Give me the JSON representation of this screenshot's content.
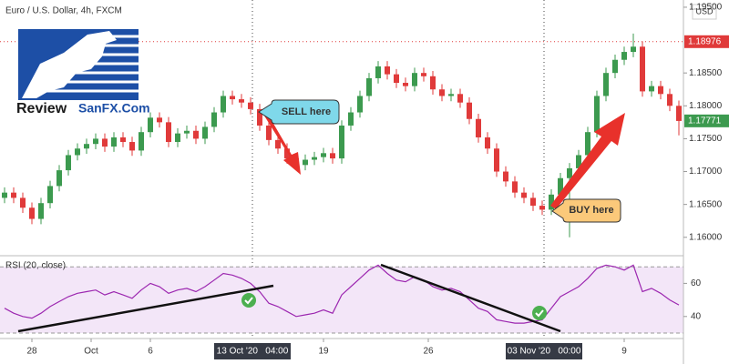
{
  "chart_data": [
    {
      "type": "candlestick",
      "title": "Euro / U.S. Dollar, 4h, FXCM",
      "currency": "USD",
      "x": [
        0,
        1,
        2,
        3,
        4,
        5,
        6,
        7,
        8,
        9,
        10,
        11,
        12,
        13,
        14,
        15,
        16,
        17,
        18,
        19,
        20,
        21,
        22,
        23,
        24,
        25,
        26,
        27,
        28,
        29,
        30,
        31,
        32,
        33,
        34,
        35,
        36,
        37,
        38,
        39,
        40,
        41,
        42,
        43,
        44,
        45,
        46,
        47,
        48,
        49,
        50,
        51,
        52,
        53,
        54,
        55,
        56,
        57,
        58,
        59,
        60,
        61,
        62,
        63,
        64,
        65,
        66,
        67,
        68,
        69,
        70,
        71,
        72,
        73,
        74
      ],
      "open": [
        1.166,
        1.1668,
        1.166,
        1.1645,
        1.1628,
        1.1652,
        1.1678,
        1.1702,
        1.1725,
        1.1735,
        1.1742,
        1.175,
        1.1738,
        1.1752,
        1.1745,
        1.1732,
        1.176,
        1.1782,
        1.1775,
        1.1745,
        1.1758,
        1.1762,
        1.175,
        1.1768,
        1.179,
        1.1815,
        1.181,
        1.1805,
        1.1795,
        1.177,
        1.1748,
        1.1735,
        1.172,
        1.171,
        1.1718,
        1.1722,
        1.1728,
        1.172,
        1.177,
        1.179,
        1.1815,
        1.1842,
        1.186,
        1.1848,
        1.1835,
        1.183,
        1.185,
        1.1845,
        1.1825,
        1.1815,
        1.1818,
        1.1805,
        1.178,
        1.1752,
        1.1735,
        1.17,
        1.1685,
        1.1668,
        1.166,
        1.1648,
        1.1642,
        1.1665,
        1.169,
        1.1705,
        1.1725,
        1.176,
        1.1815,
        1.185,
        1.187,
        1.1882,
        1.189,
        1.1822,
        1.183,
        1.1818,
        1.18
      ],
      "high": [
        1.1676,
        1.1676,
        1.1668,
        1.1653,
        1.166,
        1.1686,
        1.171,
        1.1733,
        1.1743,
        1.175,
        1.1758,
        1.1758,
        1.176,
        1.176,
        1.1753,
        1.1768,
        1.179,
        1.179,
        1.1783,
        1.1766,
        1.177,
        1.177,
        1.1776,
        1.1798,
        1.1823,
        1.1823,
        1.1818,
        1.1813,
        1.1803,
        1.1778,
        1.1756,
        1.1743,
        1.1728,
        1.1726,
        1.173,
        1.1736,
        1.1736,
        1.1778,
        1.1798,
        1.1823,
        1.185,
        1.1868,
        1.1868,
        1.1856,
        1.1843,
        1.1858,
        1.1858,
        1.1853,
        1.1833,
        1.1826,
        1.1826,
        1.1813,
        1.1788,
        1.176,
        1.1743,
        1.1708,
        1.1693,
        1.1676,
        1.1668,
        1.1656,
        1.1673,
        1.1698,
        1.1713,
        1.1733,
        1.1768,
        1.1823,
        1.1858,
        1.1878,
        1.189,
        1.191,
        1.1898,
        1.1838,
        1.1838,
        1.1826,
        1.1808
      ],
      "low": [
        1.1652,
        1.1652,
        1.1637,
        1.162,
        1.162,
        1.1644,
        1.167,
        1.1694,
        1.1717,
        1.1727,
        1.1734,
        1.173,
        1.173,
        1.1737,
        1.1724,
        1.1724,
        1.1752,
        1.1767,
        1.1737,
        1.1737,
        1.175,
        1.1742,
        1.1742,
        1.176,
        1.1782,
        1.1802,
        1.1797,
        1.1787,
        1.1762,
        1.174,
        1.1727,
        1.1712,
        1.1702,
        1.1702,
        1.171,
        1.1714,
        1.1712,
        1.1712,
        1.1762,
        1.1782,
        1.1807,
        1.1834,
        1.184,
        1.1827,
        1.1822,
        1.1822,
        1.1837,
        1.1817,
        1.1807,
        1.1807,
        1.1797,
        1.1772,
        1.1744,
        1.1727,
        1.1692,
        1.1677,
        1.166,
        1.1652,
        1.164,
        1.1634,
        1.1634,
        1.1657,
        1.16,
        1.1697,
        1.1717,
        1.1752,
        1.1807,
        1.1842,
        1.1862,
        1.1874,
        1.1814,
        1.1814,
        1.181,
        1.1792,
        1.1755
      ],
      "close": [
        1.1668,
        1.166,
        1.1645,
        1.1628,
        1.1652,
        1.1678,
        1.1702,
        1.1725,
        1.1735,
        1.1742,
        1.175,
        1.1738,
        1.1752,
        1.1745,
        1.1732,
        1.176,
        1.1782,
        1.1775,
        1.1745,
        1.1758,
        1.1762,
        1.175,
        1.1768,
        1.179,
        1.1815,
        1.181,
        1.1805,
        1.1795,
        1.177,
        1.1748,
        1.1735,
        1.172,
        1.171,
        1.1718,
        1.1722,
        1.1728,
        1.172,
        1.177,
        1.179,
        1.1815,
        1.1842,
        1.186,
        1.1848,
        1.1835,
        1.183,
        1.185,
        1.1845,
        1.1825,
        1.1815,
        1.1818,
        1.1805,
        1.178,
        1.1752,
        1.1735,
        1.17,
        1.1685,
        1.1668,
        1.166,
        1.1648,
        1.1642,
        1.1665,
        1.169,
        1.1705,
        1.1725,
        1.176,
        1.1815,
        1.185,
        1.187,
        1.1882,
        1.189,
        1.1822,
        1.183,
        1.1818,
        1.18,
        1.1777
      ],
      "up_color": "#3c9a4f",
      "down_color": "#e03a3a",
      "xlim": [
        -0.5,
        74.5
      ],
      "xticks": [
        {
          "value": 3,
          "label": "28"
        },
        {
          "value": 9.5,
          "label": "Oct"
        },
        {
          "value": 16,
          "label": "6"
        },
        {
          "value": 27.2,
          "label": "13 Oct '20   04:00",
          "highlight": true
        },
        {
          "value": 35,
          "label": "19"
        },
        {
          "value": 46.5,
          "label": "26"
        },
        {
          "value": 59.2,
          "label": "03 Nov '20   00:00",
          "highlight": true
        },
        {
          "value": 68,
          "label": "9"
        }
      ],
      "ylim": [
        1.1572,
        1.1961
      ],
      "yticks": [
        {
          "value": 1.16,
          "label": "1.16000"
        },
        {
          "value": 1.165,
          "label": "1.16500"
        },
        {
          "value": 1.17,
          "label": "1.17000"
        },
        {
          "value": 1.175,
          "label": "1.17500"
        },
        {
          "value": 1.18,
          "label": "1.18000"
        },
        {
          "value": 1.185,
          "label": "1.18500"
        },
        {
          "value": 1.195,
          "label": "1.19500"
        }
      ],
      "price_labels": [
        {
          "value": 1.18976,
          "label": "1.18976",
          "color": "#e03a3a"
        },
        {
          "value": 1.17771,
          "label": "1.17771",
          "color": "#3c9a4f"
        }
      ],
      "annotations": [
        "SELL here",
        "BUY here"
      ],
      "logo": [
        "Review",
        "SanFX.Com"
      ]
    },
    {
      "type": "line",
      "title": "RSI (20, close)",
      "color": "#9c27b0",
      "x": [
        0,
        1,
        2,
        3,
        4,
        5,
        6,
        7,
        8,
        9,
        10,
        11,
        12,
        13,
        14,
        15,
        16,
        17,
        18,
        19,
        20,
        21,
        22,
        23,
        24,
        25,
        26,
        27,
        28,
        29,
        30,
        31,
        32,
        33,
        34,
        35,
        36,
        37,
        38,
        39,
        40,
        41,
        42,
        43,
        44,
        45,
        46,
        47,
        48,
        49,
        50,
        51,
        52,
        53,
        54,
        55,
        56,
        57,
        58,
        59,
        60,
        61,
        62,
        63,
        64,
        65,
        66,
        67,
        68,
        69,
        70,
        71,
        72,
        73,
        74
      ],
      "values": [
        45,
        42,
        40,
        39,
        42,
        46,
        49,
        52,
        54,
        55,
        56,
        53,
        55,
        53,
        51,
        56,
        60,
        58,
        54,
        56,
        57,
        55,
        58,
        62,
        66,
        65,
        63,
        60,
        55,
        48,
        46,
        43,
        40,
        41,
        42,
        44,
        42,
        53,
        58,
        63,
        68,
        71,
        66,
        62,
        61,
        64,
        62,
        58,
        56,
        57,
        55,
        50,
        45,
        43,
        38,
        37,
        36,
        36,
        37,
        38,
        45,
        52,
        55,
        58,
        63,
        69,
        71,
        70,
        68,
        71,
        55,
        57,
        54,
        50,
        47
      ],
      "xlim": [
        -0.5,
        74.5
      ],
      "ylim": [
        26.7,
        76.7
      ],
      "yticks": [
        40,
        60
      ],
      "band": [
        30,
        70
      ],
      "band_color": "#f3e6f8"
    }
  ]
}
